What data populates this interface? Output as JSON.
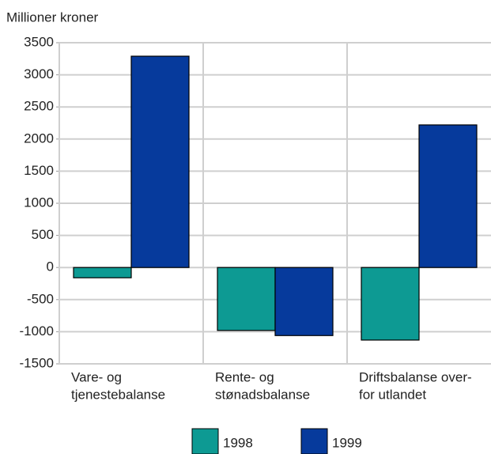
{
  "chart_data": {
    "type": "bar",
    "y_label": "Millioner kroner",
    "categories": [
      [
        "Vare- og",
        "tjenestebalanse"
      ],
      [
        "Rente- og",
        "stønadsbalanse"
      ],
      [
        "Driftsbalanse over-",
        "for utlandet"
      ]
    ],
    "series": [
      {
        "name": "1998",
        "color": "#0d9a93",
        "values": [
          -160,
          -980,
          -1130
        ]
      },
      {
        "name": "1999",
        "color": "#063a9c",
        "values": [
          3290,
          -1060,
          2220
        ]
      }
    ],
    "ylim": [
      -1500,
      3500
    ],
    "yticks": [
      -1500,
      -1000,
      -500,
      0,
      500,
      1000,
      1500,
      2000,
      2500,
      3000,
      3500
    ],
    "grid": true,
    "legend": "bottom"
  }
}
